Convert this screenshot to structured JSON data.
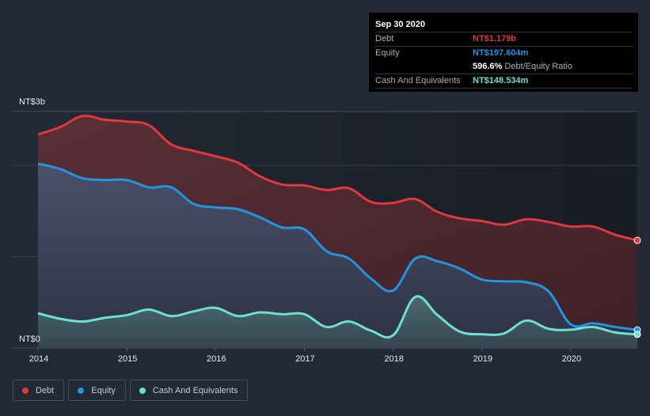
{
  "tooltip": {
    "date": "Sep 30 2020",
    "rows": [
      {
        "label": "Debt",
        "value": "NT$1.179b",
        "color": "#e2383d"
      },
      {
        "label": "Equity",
        "value": "NT$197.604m",
        "color": "#2394df"
      },
      {
        "label": "",
        "value": "596.6%",
        "suffix": "Debt/Equity Ratio",
        "color": "#ffffff"
      },
      {
        "label": "Cash And Equivalents",
        "value": "NT$148.534m",
        "color": "#6ce1cd"
      }
    ]
  },
  "legend": [
    {
      "label": "Debt",
      "color": "#e2383d"
    },
    {
      "label": "Equity",
      "color": "#2394df"
    },
    {
      "label": "Cash And Equivalents",
      "color": "#6ce1cd"
    }
  ],
  "chart_data": {
    "type": "area",
    "title": "",
    "xlabel": "",
    "ylabel": "",
    "y_unit": "NT$ billions",
    "y_tick_labels": [
      "NT$0",
      "NT$3b"
    ],
    "x_tick_labels": [
      "2014",
      "2015",
      "2016",
      "2017",
      "2018",
      "2019",
      "2020"
    ],
    "x_ticks": [
      2014,
      2015,
      2016,
      2017,
      2018,
      2019,
      2020
    ],
    "xlim": [
      2014,
      2020.75
    ],
    "ylim": [
      0,
      2.59
    ],
    "grid": true,
    "legend_position": "bottom-left",
    "x": [
      2014.0,
      2014.25,
      2014.5,
      2014.75,
      2015.0,
      2015.25,
      2015.5,
      2015.75,
      2016.0,
      2016.25,
      2016.5,
      2016.75,
      2017.0,
      2017.25,
      2017.5,
      2017.75,
      2018.0,
      2018.25,
      2018.5,
      2018.75,
      2019.0,
      2019.25,
      2019.5,
      2019.75,
      2020.0,
      2020.25,
      2020.5,
      2020.75
    ],
    "series": [
      {
        "name": "Debt",
        "color": "#e2383d",
        "values": [
          2.34,
          2.42,
          2.54,
          2.5,
          2.48,
          2.44,
          2.23,
          2.16,
          2.1,
          2.03,
          1.88,
          1.79,
          1.78,
          1.73,
          1.75,
          1.6,
          1.59,
          1.63,
          1.49,
          1.42,
          1.39,
          1.35,
          1.41,
          1.38,
          1.33,
          1.33,
          1.24,
          1.179
        ]
      },
      {
        "name": "Equity",
        "color": "#2394df",
        "values": [
          2.02,
          1.96,
          1.86,
          1.84,
          1.84,
          1.76,
          1.76,
          1.58,
          1.54,
          1.52,
          1.43,
          1.32,
          1.3,
          1.06,
          0.98,
          0.76,
          0.63,
          0.98,
          0.95,
          0.87,
          0.75,
          0.73,
          0.72,
          0.62,
          0.26,
          0.27,
          0.23,
          0.198
        ]
      },
      {
        "name": "Cash And Equivalents",
        "color": "#6ce1cd",
        "values": [
          0.38,
          0.32,
          0.29,
          0.33,
          0.36,
          0.42,
          0.35,
          0.4,
          0.44,
          0.35,
          0.39,
          0.37,
          0.37,
          0.23,
          0.29,
          0.19,
          0.14,
          0.56,
          0.36,
          0.18,
          0.15,
          0.16,
          0.3,
          0.21,
          0.2,
          0.23,
          0.17,
          0.149
        ]
      }
    ]
  }
}
